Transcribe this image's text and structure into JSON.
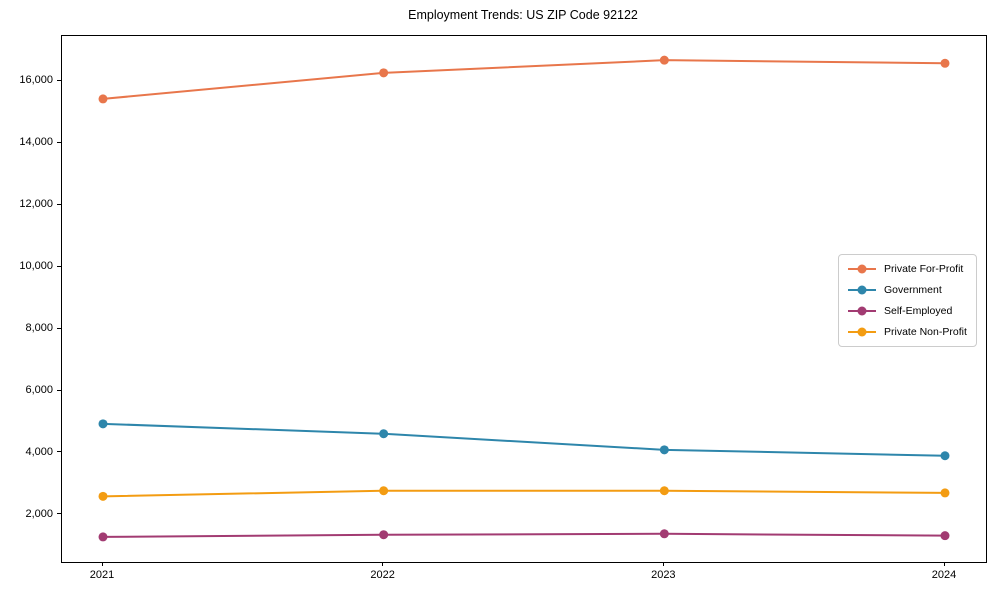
{
  "figure": {
    "background_color": "#ffffff",
    "plot_border_color": "#000000"
  },
  "chart_data": {
    "type": "line",
    "title": "Employment Trends: US ZIP Code 92122",
    "xlabel": "",
    "ylabel": "",
    "x": [
      "2021",
      "2022",
      "2023",
      "2024"
    ],
    "series": [
      {
        "name": "Private For-Profit",
        "color": "#E8764B",
        "values": [
          15430,
          16270,
          16680,
          16580
        ]
      },
      {
        "name": "Government",
        "color": "#2E86AB",
        "values": [
          4940,
          4620,
          4100,
          3910
        ]
      },
      {
        "name": "Self-Employed",
        "color": "#A23B72",
        "values": [
          1290,
          1360,
          1390,
          1330
        ]
      },
      {
        "name": "Private Non-Profit",
        "color": "#F39C12",
        "values": [
          2600,
          2780,
          2780,
          2710
        ]
      }
    ],
    "ylim": [
      480,
      17460
    ],
    "yticks": [
      2000,
      4000,
      6000,
      8000,
      10000,
      12000,
      14000,
      16000
    ],
    "ytick_labels": [
      "2,000",
      "4,000",
      "6,000",
      "8,000",
      "10,000",
      "12,000",
      "14,000",
      "16,000"
    ],
    "grid": false,
    "legend_position": "center right",
    "marker": "circle",
    "marker_radius": 4.5,
    "line_width": 2
  }
}
